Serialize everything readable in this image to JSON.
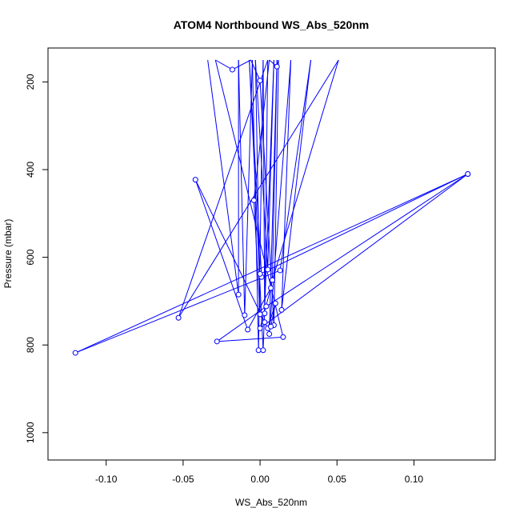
{
  "chart_data": {
    "type": "line",
    "title": "ATOM4 Northbound WS_Abs_520nm",
    "xlabel": "WS_Abs_520nm",
    "ylabel": "Pressure (mbar)",
    "xlim": [
      -0.13,
      0.145
    ],
    "ylim": [
      1035,
      150
    ],
    "y_inverted": true,
    "grid": false,
    "x_ticks": [
      {
        "value": -0.1,
        "label": "-0.10"
      },
      {
        "value": -0.05,
        "label": "-0.05"
      },
      {
        "value": 0.0,
        "label": "0.00"
      },
      {
        "value": 0.05,
        "label": "0.05"
      },
      {
        "value": 0.1,
        "label": "0.10"
      }
    ],
    "y_ticks": [
      {
        "value": 200,
        "label": "200"
      },
      {
        "value": 400,
        "label": "400"
      },
      {
        "value": 600,
        "label": "600"
      },
      {
        "value": 800,
        "label": "800"
      },
      {
        "value": 1000,
        "label": "1000"
      }
    ],
    "series": [
      {
        "color": "#0000ff",
        "marker": "open-circle",
        "points": [
          {
            "x": -0.034,
            "y": 150
          },
          {
            "x": -0.014,
            "y": 685
          },
          {
            "x": -0.014,
            "y": 150
          },
          {
            "x": -0.01,
            "y": 732
          },
          {
            "x": -0.005,
            "y": 150
          },
          {
            "x": -0.001,
            "y": 812
          },
          {
            "x": 0.002,
            "y": 150
          },
          {
            "x": 0.003,
            "y": 728
          },
          {
            "x": 0.005,
            "y": 150
          },
          {
            "x": -0.053,
            "y": 738
          },
          {
            "x": 0.051,
            "y": 150
          },
          {
            "x": 0.008,
            "y": 652
          },
          {
            "x": 0.011,
            "y": 150
          },
          {
            "x": 0.006,
            "y": 775
          },
          {
            "x": 0.02,
            "y": 150
          },
          {
            "x": 0.014,
            "y": 720
          },
          {
            "x": 0.033,
            "y": 150
          },
          {
            "x": 0.013,
            "y": 630
          },
          {
            "x": -0.12,
            "y": 818
          },
          {
            "x": 0.135,
            "y": 410
          },
          {
            "x": 0.004,
            "y": 712
          },
          {
            "x": -0.028,
            "y": 792
          },
          {
            "x": 0.015,
            "y": 782
          },
          {
            "x": -0.029,
            "y": 150
          },
          {
            "x": -0.018,
            "y": 172
          },
          {
            "x": -0.006,
            "y": 150
          },
          {
            "x": 0.0,
            "y": 197
          },
          {
            "x": 0.009,
            "y": 755
          },
          {
            "x": 0.012,
            "y": 150
          },
          {
            "x": 0.011,
            "y": 165
          },
          {
            "x": 0.006,
            "y": 150
          },
          {
            "x": -0.004,
            "y": 470
          },
          {
            "x": 0.0,
            "y": 730
          },
          {
            "x": -0.003,
            "y": 150
          },
          {
            "x": 0.005,
            "y": 628
          },
          {
            "x": 0.009,
            "y": 150
          },
          {
            "x": 0.002,
            "y": 812
          },
          {
            "x": -0.007,
            "y": 150
          },
          {
            "x": 0.001,
            "y": 645
          },
          {
            "x": 0.0,
            "y": 638
          },
          {
            "x": 0.135,
            "y": 410
          },
          {
            "x": 0.0,
            "y": 762
          },
          {
            "x": 0.007,
            "y": 670
          },
          {
            "x": -0.008,
            "y": 765
          },
          {
            "x": -0.042,
            "y": 423
          },
          {
            "x": 0.003,
            "y": 748
          },
          {
            "x": 0.005,
            "y": 762
          },
          {
            "x": 0.01,
            "y": 705
          },
          {
            "x": 0.007,
            "y": 758
          }
        ]
      }
    ]
  }
}
